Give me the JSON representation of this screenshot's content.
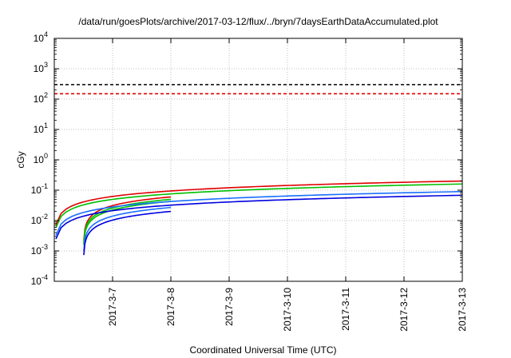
{
  "chart_data": {
    "type": "line",
    "title": "/data/run/goesPlots/archive/2017-03-12/flux/../bryn/7daysEarthDataAccumulated.plot",
    "xlabel": "Coordinated Universal Time (UTC)",
    "ylabel": "cGy",
    "x_range": [
      "2017-03-06T00:00",
      "2017-03-13T00:00"
    ],
    "x_ticks": [
      {
        "x": "2017-03-07T00:00",
        "label": "2017-3-7"
      },
      {
        "x": "2017-03-08T00:00",
        "label": "2017-3-8"
      },
      {
        "x": "2017-03-09T00:00",
        "label": "2017-3-9"
      },
      {
        "x": "2017-03-10T00:00",
        "label": "2017-3-10"
      },
      {
        "x": "2017-03-11T00:00",
        "label": "2017-3-11"
      },
      {
        "x": "2017-03-12T00:00",
        "label": "2017-3-12"
      },
      {
        "x": "2017-03-13T00:00",
        "label": "2017-3-13"
      }
    ],
    "y_scale": "log",
    "y_range": [
      0.0001,
      10000
    ],
    "y_ticks": [
      {
        "value": 0.0001,
        "base": "10",
        "exp": "-4"
      },
      {
        "value": 0.001,
        "base": "10",
        "exp": "-3"
      },
      {
        "value": 0.01,
        "base": "10",
        "exp": "-2"
      },
      {
        "value": 0.1,
        "base": "10",
        "exp": "-1"
      },
      {
        "value": 1,
        "base": "10",
        "exp": "0"
      },
      {
        "value": 10,
        "base": "10",
        "exp": "1"
      },
      {
        "value": 100,
        "base": "10",
        "exp": "2"
      },
      {
        "value": 1000,
        "base": "10",
        "exp": "3"
      },
      {
        "value": 10000,
        "base": "10",
        "exp": "4"
      }
    ],
    "grid": true,
    "thresholds": [
      {
        "value": 300,
        "color": "#000000",
        "style": "dashed"
      },
      {
        "value": 150,
        "color": "#e00000",
        "style": "dashed"
      }
    ],
    "series": [
      {
        "color": "#e00000",
        "start": "2017-03-06T00:00",
        "end": "2017-03-13T00:00",
        "end_value": 0.2
      },
      {
        "color": "#e00000",
        "start": "2017-03-06T12:00",
        "end": "2017-03-08T00:00",
        "end_value": 0.06
      },
      {
        "color": "#00c000",
        "start": "2017-03-06T00:00",
        "end": "2017-03-13T00:00",
        "end_value": 0.16
      },
      {
        "color": "#00c000",
        "start": "2017-03-06T12:00",
        "end": "2017-03-08T00:00",
        "end_value": 0.05
      },
      {
        "color": "#00c000",
        "start": "2017-03-06T12:00",
        "end": "2017-03-08T00:00",
        "end_value": 0.043
      },
      {
        "color": "#1a6fff",
        "start": "2017-03-06T00:00",
        "end": "2017-03-13T00:00",
        "end_value": 0.09
      },
      {
        "color": "#1a6fff",
        "start": "2017-03-06T12:00",
        "end": "2017-03-08T00:00",
        "end_value": 0.027
      },
      {
        "color": "#0000e0",
        "start": "2017-03-06T00:00",
        "end": "2017-03-13T00:00",
        "end_value": 0.068
      },
      {
        "color": "#0000e0",
        "start": "2017-03-06T12:00",
        "end": "2017-03-08T00:00",
        "end_value": 0.02
      }
    ]
  }
}
